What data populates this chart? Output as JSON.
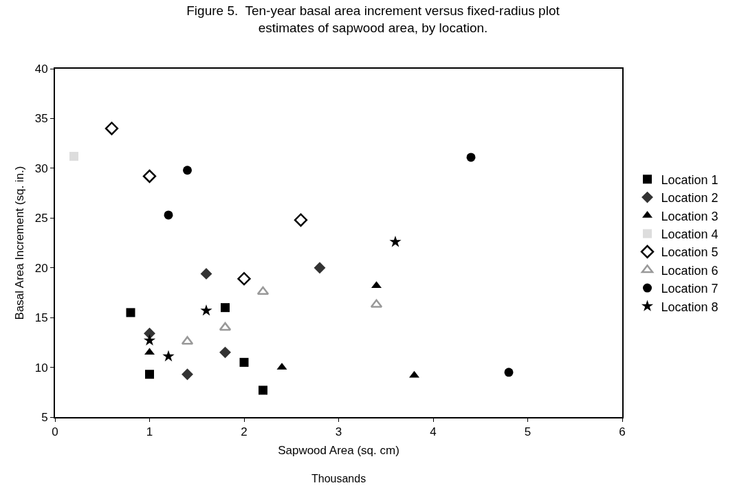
{
  "chart_data": {
    "type": "scatter",
    "title": "Figure 5.  Ten-year basal area increment versus fixed-radius plot\nestimates of sapwood area, by location.",
    "xlabel": "Sapwood Area (sq. cm)",
    "ylabel": "Basal Area Increment (sq. in.)",
    "annotations": [
      "Thousands"
    ],
    "xlim": [
      0,
      6
    ],
    "xticks": [
      0,
      1,
      2,
      3,
      4,
      5,
      6
    ],
    "ylim": [
      5,
      40
    ],
    "yticks": [
      5,
      10,
      15,
      20,
      25,
      30,
      35,
      40
    ],
    "legend": "right",
    "series": [
      {
        "name": "Location 1",
        "color": "#000000",
        "marker": "square",
        "x": [
          0.8,
          1,
          1.8,
          2,
          2.2
        ],
        "values": [
          15.5,
          9.3,
          16,
          10.5,
          7.7
        ]
      },
      {
        "name": "Location 2",
        "color": "#333333",
        "marker": "diamond",
        "x": [
          1,
          1.4,
          1.6,
          1.8,
          2.8
        ],
        "values": [
          13.4,
          9.3,
          19.4,
          11.5,
          20
        ]
      },
      {
        "name": "Location 3",
        "color": "#000000",
        "marker": "triangle",
        "x": [
          1,
          2.4,
          3.4,
          3.8
        ],
        "values": [
          11.5,
          10,
          18.2,
          9.2
        ]
      },
      {
        "name": "Location 4",
        "color": "#dddddd",
        "marker": "square",
        "x": [
          0.2
        ],
        "values": [
          31.2
        ]
      },
      {
        "name": "Location 5",
        "color": "#000000",
        "marker": "diamond-open",
        "x": [
          0.6,
          1,
          2,
          2.6
        ],
        "values": [
          34,
          29.2,
          18.9,
          24.8
        ]
      },
      {
        "name": "Location 6",
        "color": "#999999",
        "marker": "triangle-open",
        "x": [
          1.4,
          1.8,
          2.2,
          3.4
        ],
        "values": [
          12.6,
          14,
          17.6,
          16.3
        ]
      },
      {
        "name": "Location 7",
        "color": "#000000",
        "marker": "circle",
        "x": [
          1.2,
          1.4,
          4.4,
          4.8
        ],
        "values": [
          25.3,
          29.8,
          31.1,
          9.5
        ]
      },
      {
        "name": "Location 8",
        "color": "#000000",
        "marker": "star",
        "x": [
          1,
          1.2,
          1.6,
          3.6
        ],
        "values": [
          12.7,
          11.1,
          15.7,
          22.6
        ]
      }
    ]
  }
}
